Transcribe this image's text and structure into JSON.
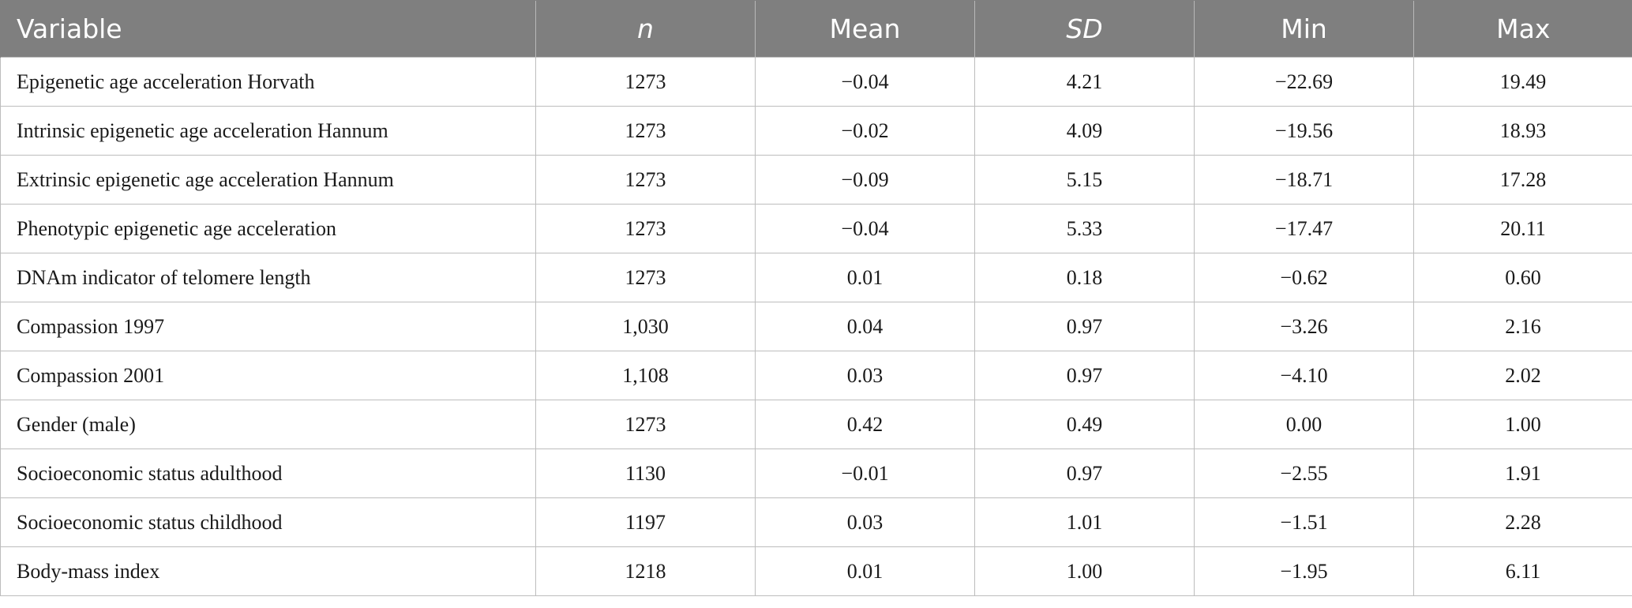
{
  "table": {
    "headers": [
      "Variable",
      "n",
      "Mean",
      "SD",
      "Min",
      "Max"
    ],
    "rows": [
      [
        "Epigenetic age acceleration Horvath",
        "1273",
        "−0.04",
        "4.21",
        "−22.69",
        "19.49"
      ],
      [
        "Intrinsic epigenetic age acceleration Hannum",
        "1273",
        "−0.02",
        "4.09",
        "−19.56",
        "18.93"
      ],
      [
        "Extrinsic epigenetic age acceleration Hannum",
        "1273",
        "−0.09",
        "5.15",
        "−18.71",
        "17.28"
      ],
      [
        "Phenotypic epigenetic age acceleration",
        "1273",
        "−0.04",
        "5.33",
        "−17.47",
        "20.11"
      ],
      [
        "DNAm indicator of telomere length",
        "1273",
        "0.01",
        "0.18",
        "−0.62",
        "0.60"
      ],
      [
        "Compassion 1997",
        "1,030",
        "0.04",
        "0.97",
        "−3.26",
        "2.16"
      ],
      [
        "Compassion 2001",
        "1,108",
        "0.03",
        "0.97",
        "−4.10",
        "2.02"
      ],
      [
        "Gender (male)",
        "1273",
        "0.42",
        "0.49",
        "0.00",
        "1.00"
      ],
      [
        "Socioeconomic status adulthood",
        "1130",
        "−0.01",
        "0.97",
        "−2.55",
        "1.91"
      ],
      [
        "Socioeconomic status childhood",
        "1197",
        "0.03",
        "1.01",
        "−1.51",
        "2.28"
      ],
      [
        "Body-mass index",
        "1218",
        "0.01",
        "1.00",
        "−1.95",
        "6.11"
      ]
    ]
  },
  "colors": {
    "header_background": "#7f7f7f",
    "header_text": "#ffffff",
    "border": "#bdbdbd"
  }
}
